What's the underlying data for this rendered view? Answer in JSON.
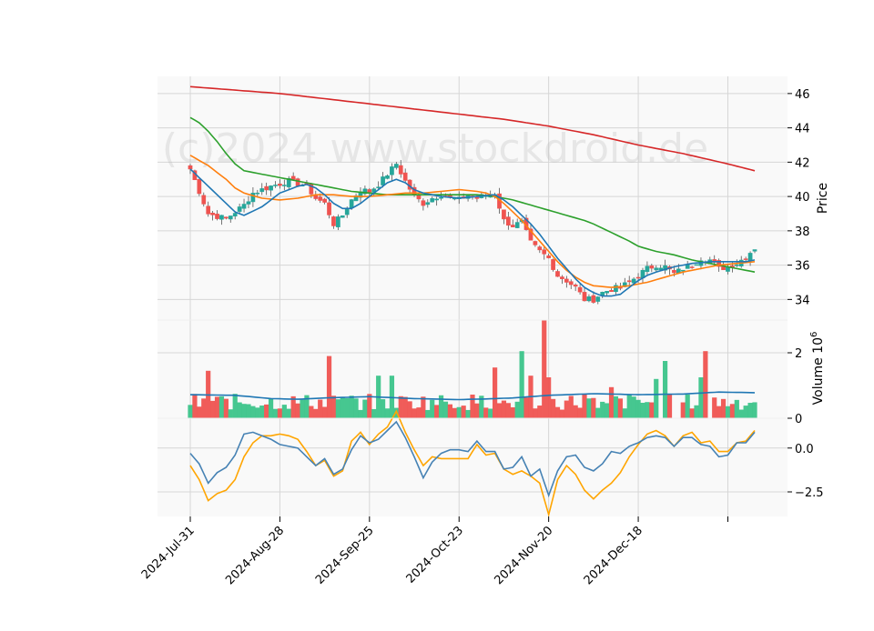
{
  "watermark": "(c)2024 www.stockdroid.de",
  "chart_data": [
    {
      "id": "price",
      "type": "candlestick",
      "ylabel": "Price",
      "ylim": [
        32.8,
        47.0
      ],
      "yticks": [
        34,
        36,
        38,
        40,
        42,
        44,
        46
      ],
      "grid": true,
      "colors": {
        "up": "#26a69a",
        "up_fill": "#3cc48a",
        "down": "#ef5350",
        "ma_short": "#1f77b4",
        "ma_mid": "#ff7f0e",
        "ma_long": "#2ca02c",
        "ma_very_long": "#d62728"
      },
      "close_anchors": [
        [
          0,
          41.6
        ],
        [
          2,
          40.3
        ],
        [
          4,
          39.0
        ],
        [
          8,
          38.7
        ],
        [
          12,
          39.5
        ],
        [
          14,
          40.2
        ],
        [
          18,
          40.6
        ],
        [
          22,
          40.9
        ],
        [
          26,
          40.6
        ],
        [
          28,
          39.9
        ],
        [
          30,
          39.6
        ],
        [
          32,
          38.4
        ],
        [
          34,
          38.9
        ],
        [
          36,
          39.8
        ],
        [
          38,
          40.4
        ],
        [
          40,
          40.3
        ],
        [
          42,
          40.7
        ],
        [
          44,
          41.3
        ],
        [
          46,
          41.9
        ],
        [
          48,
          40.9
        ],
        [
          50,
          40.0
        ],
        [
          52,
          39.6
        ],
        [
          54,
          39.9
        ],
        [
          56,
          40.1
        ],
        [
          58,
          39.9
        ],
        [
          60,
          39.8
        ],
        [
          62,
          40.1
        ],
        [
          64,
          39.9
        ],
        [
          66,
          40.1
        ],
        [
          68,
          40.2
        ],
        [
          70,
          38.6
        ],
        [
          72,
          38.3
        ],
        [
          74,
          38.5
        ],
        [
          76,
          37.3
        ],
        [
          78,
          36.8
        ],
        [
          80,
          36.4
        ],
        [
          82,
          35.4
        ],
        [
          84,
          35.1
        ],
        [
          86,
          34.7
        ],
        [
          88,
          34.0
        ],
        [
          90,
          34.0
        ],
        [
          92,
          34.4
        ],
        [
          94,
          34.6
        ],
        [
          96,
          34.7
        ],
        [
          98,
          35.0
        ],
        [
          100,
          35.4
        ],
        [
          102,
          35.8
        ],
        [
          104,
          36.0
        ],
        [
          106,
          35.9
        ],
        [
          108,
          35.5
        ],
        [
          110,
          35.8
        ],
        [
          112,
          36.0
        ],
        [
          114,
          36.4
        ],
        [
          116,
          36.3
        ],
        [
          118,
          35.8
        ],
        [
          120,
          35.9
        ],
        [
          122,
          36.1
        ],
        [
          124,
          36.5
        ],
        [
          126,
          37.0
        ]
      ],
      "ma_short_anchors": [
        [
          0,
          41.6
        ],
        [
          4,
          40.6
        ],
        [
          8,
          39.6
        ],
        [
          10,
          39.1
        ],
        [
          12,
          38.9
        ],
        [
          16,
          39.4
        ],
        [
          20,
          40.2
        ],
        [
          24,
          40.6
        ],
        [
          26,
          40.7
        ],
        [
          28,
          40.5
        ],
        [
          30,
          40.1
        ],
        [
          32,
          39.6
        ],
        [
          34,
          39.3
        ],
        [
          36,
          39.3
        ],
        [
          38,
          39.6
        ],
        [
          40,
          40.0
        ],
        [
          42,
          40.4
        ],
        [
          44,
          40.8
        ],
        [
          46,
          41.0
        ],
        [
          48,
          40.8
        ],
        [
          50,
          40.4
        ],
        [
          52,
          40.2
        ],
        [
          56,
          40.0
        ],
        [
          60,
          39.9
        ],
        [
          64,
          40.0
        ],
        [
          68,
          40.1
        ],
        [
          70,
          39.8
        ],
        [
          72,
          39.4
        ],
        [
          74,
          38.9
        ],
        [
          76,
          38.4
        ],
        [
          78,
          37.8
        ],
        [
          80,
          37.1
        ],
        [
          82,
          36.4
        ],
        [
          84,
          35.8
        ],
        [
          86,
          35.2
        ],
        [
          88,
          34.7
        ],
        [
          90,
          34.4
        ],
        [
          92,
          34.2
        ],
        [
          94,
          34.2
        ],
        [
          96,
          34.3
        ],
        [
          98,
          34.7
        ],
        [
          100,
          35.1
        ],
        [
          102,
          35.4
        ],
        [
          104,
          35.6
        ],
        [
          108,
          35.9
        ],
        [
          112,
          36.1
        ],
        [
          116,
          36.2
        ],
        [
          120,
          36.2
        ],
        [
          124,
          36.2
        ],
        [
          126,
          36.3
        ]
      ],
      "ma_mid_anchors": [
        [
          0,
          42.4
        ],
        [
          4,
          41.8
        ],
        [
          8,
          41.0
        ],
        [
          10,
          40.5
        ],
        [
          12,
          40.2
        ],
        [
          16,
          39.9
        ],
        [
          20,
          39.8
        ],
        [
          24,
          39.9
        ],
        [
          28,
          40.1
        ],
        [
          32,
          40.1
        ],
        [
          36,
          40.0
        ],
        [
          40,
          40.0
        ],
        [
          44,
          40.1
        ],
        [
          48,
          40.2
        ],
        [
          52,
          40.2
        ],
        [
          56,
          40.3
        ],
        [
          60,
          40.4
        ],
        [
          64,
          40.3
        ],
        [
          66,
          40.2
        ],
        [
          68,
          40.0
        ],
        [
          70,
          39.6
        ],
        [
          72,
          39.1
        ],
        [
          74,
          38.6
        ],
        [
          76,
          38.0
        ],
        [
          78,
          37.4
        ],
        [
          80,
          36.8
        ],
        [
          82,
          36.2
        ],
        [
          84,
          35.7
        ],
        [
          86,
          35.3
        ],
        [
          88,
          35.0
        ],
        [
          90,
          34.8
        ],
        [
          94,
          34.7
        ],
        [
          98,
          34.8
        ],
        [
          102,
          35.0
        ],
        [
          106,
          35.3
        ],
        [
          110,
          35.6
        ],
        [
          114,
          35.8
        ],
        [
          118,
          36.0
        ],
        [
          122,
          36.1
        ],
        [
          126,
          36.2
        ]
      ],
      "ma_long_anchors": [
        [
          0,
          44.6
        ],
        [
          2,
          44.3
        ],
        [
          4,
          43.8
        ],
        [
          6,
          43.2
        ],
        [
          8,
          42.5
        ],
        [
          10,
          41.9
        ],
        [
          12,
          41.5
        ],
        [
          16,
          41.3
        ],
        [
          20,
          41.1
        ],
        [
          24,
          40.9
        ],
        [
          28,
          40.7
        ],
        [
          32,
          40.5
        ],
        [
          36,
          40.3
        ],
        [
          40,
          40.2
        ],
        [
          44,
          40.1
        ],
        [
          48,
          40.1
        ],
        [
          52,
          40.1
        ],
        [
          56,
          40.1
        ],
        [
          60,
          40.1
        ],
        [
          64,
          40.1
        ],
        [
          68,
          40.0
        ],
        [
          72,
          39.8
        ],
        [
          76,
          39.5
        ],
        [
          80,
          39.2
        ],
        [
          84,
          38.9
        ],
        [
          88,
          38.6
        ],
        [
          90,
          38.4
        ],
        [
          94,
          37.9
        ],
        [
          98,
          37.4
        ],
        [
          100,
          37.1
        ],
        [
          104,
          36.8
        ],
        [
          108,
          36.6
        ],
        [
          112,
          36.3
        ],
        [
          116,
          36.1
        ],
        [
          120,
          35.9
        ],
        [
          124,
          35.7
        ],
        [
          126,
          35.6
        ]
      ],
      "ma_very_long_anchors": [
        [
          0,
          46.4
        ],
        [
          10,
          46.2
        ],
        [
          20,
          46.0
        ],
        [
          30,
          45.7
        ],
        [
          40,
          45.4
        ],
        [
          50,
          45.1
        ],
        [
          60,
          44.8
        ],
        [
          70,
          44.5
        ],
        [
          80,
          44.1
        ],
        [
          90,
          43.6
        ],
        [
          100,
          43.0
        ],
        [
          110,
          42.5
        ],
        [
          120,
          41.9
        ],
        [
          126,
          41.5
        ]
      ]
    },
    {
      "id": "volume",
      "type": "bar",
      "ylabel": "Volume  10",
      "ylabel_exponent": "6",
      "ylim": [
        0,
        3.0
      ],
      "yticks": [
        0,
        2
      ],
      "grid": true,
      "spike_values": [
        [
          4,
          1.45
        ],
        [
          31,
          1.9
        ],
        [
          42,
          1.3
        ],
        [
          45,
          1.3
        ],
        [
          68,
          1.55
        ],
        [
          74,
          2.05
        ],
        [
          76,
          1.3
        ],
        [
          79,
          3.0
        ],
        [
          80,
          1.25
        ],
        [
          88,
          0.75
        ],
        [
          94,
          0.95
        ],
        [
          104,
          1.2
        ],
        [
          106,
          1.75
        ],
        [
          114,
          1.25
        ],
        [
          115,
          2.05
        ]
      ],
      "avg_anchors": [
        [
          0,
          0.72
        ],
        [
          10,
          0.7
        ],
        [
          18,
          0.6
        ],
        [
          24,
          0.58
        ],
        [
          30,
          0.62
        ],
        [
          40,
          0.66
        ],
        [
          50,
          0.6
        ],
        [
          60,
          0.57
        ],
        [
          66,
          0.59
        ],
        [
          72,
          0.62
        ],
        [
          80,
          0.7
        ],
        [
          90,
          0.75
        ],
        [
          100,
          0.72
        ],
        [
          110,
          0.74
        ],
        [
          118,
          0.8
        ],
        [
          126,
          0.78
        ]
      ]
    },
    {
      "id": "oscillator",
      "type": "line",
      "ylim": [
        -3.9,
        1.7
      ],
      "yticks": [
        0.0,
        -2.5
      ],
      "ytick_labels": [
        "0.0",
        "−2.5"
      ],
      "grid": true,
      "colors": {
        "line_a": "#4682b4",
        "line_b": "#ffa500"
      },
      "line_a_anchors": [
        [
          0,
          -0.3
        ],
        [
          2,
          -0.9
        ],
        [
          4,
          -2.0
        ],
        [
          6,
          -1.4
        ],
        [
          8,
          -1.1
        ],
        [
          10,
          -0.4
        ],
        [
          12,
          0.8
        ],
        [
          14,
          0.9
        ],
        [
          16,
          0.7
        ],
        [
          18,
          0.5
        ],
        [
          20,
          0.2
        ],
        [
          22,
          0.1
        ],
        [
          24,
          0.0
        ],
        [
          26,
          -0.5
        ],
        [
          28,
          -1.0
        ],
        [
          30,
          -0.6
        ],
        [
          32,
          -1.5
        ],
        [
          34,
          -1.2
        ],
        [
          36,
          -0.1
        ],
        [
          38,
          0.7
        ],
        [
          40,
          0.3
        ],
        [
          42,
          0.5
        ],
        [
          44,
          1.0
        ],
        [
          46,
          1.5
        ],
        [
          48,
          0.6
        ],
        [
          50,
          -0.5
        ],
        [
          52,
          -1.7
        ],
        [
          54,
          -0.8
        ],
        [
          56,
          -0.3
        ],
        [
          58,
          -0.1
        ],
        [
          60,
          -0.1
        ],
        [
          62,
          -0.2
        ],
        [
          64,
          0.4
        ],
        [
          66,
          -0.2
        ],
        [
          68,
          -0.2
        ],
        [
          70,
          -1.2
        ],
        [
          72,
          -1.1
        ],
        [
          74,
          -0.5
        ],
        [
          76,
          -1.6
        ],
        [
          78,
          -1.2
        ],
        [
          80,
          -2.7
        ],
        [
          82,
          -1.3
        ],
        [
          84,
          -0.5
        ],
        [
          86,
          -0.4
        ],
        [
          88,
          -1.1
        ],
        [
          90,
          -1.3
        ],
        [
          92,
          -0.9
        ],
        [
          94,
          -0.2
        ],
        [
          96,
          -0.3
        ],
        [
          98,
          0.1
        ],
        [
          100,
          0.3
        ],
        [
          102,
          0.6
        ],
        [
          104,
          0.7
        ],
        [
          106,
          0.6
        ],
        [
          108,
          0.1
        ],
        [
          110,
          0.6
        ],
        [
          112,
          0.6
        ],
        [
          114,
          0.2
        ],
        [
          116,
          0.1
        ],
        [
          118,
          -0.5
        ],
        [
          120,
          -0.4
        ],
        [
          122,
          0.3
        ],
        [
          124,
          0.3
        ],
        [
          126,
          0.9
        ]
      ],
      "line_b_anchors": [
        [
          0,
          -1.0
        ],
        [
          2,
          -1.8
        ],
        [
          4,
          -3.0
        ],
        [
          6,
          -2.6
        ],
        [
          8,
          -2.4
        ],
        [
          10,
          -1.8
        ],
        [
          12,
          -0.5
        ],
        [
          14,
          0.3
        ],
        [
          16,
          0.7
        ],
        [
          18,
          0.7
        ],
        [
          20,
          0.8
        ],
        [
          22,
          0.7
        ],
        [
          24,
          0.5
        ],
        [
          26,
          -0.2
        ],
        [
          28,
          -1.0
        ],
        [
          30,
          -0.7
        ],
        [
          32,
          -1.6
        ],
        [
          34,
          -1.3
        ],
        [
          36,
          0.4
        ],
        [
          38,
          0.9
        ],
        [
          40,
          0.2
        ],
        [
          42,
          0.8
        ],
        [
          44,
          1.2
        ],
        [
          46,
          2.1
        ],
        [
          48,
          0.9
        ],
        [
          50,
          -0.1
        ],
        [
          52,
          -1.0
        ],
        [
          54,
          -0.5
        ],
        [
          56,
          -0.6
        ],
        [
          58,
          -0.6
        ],
        [
          60,
          -0.6
        ],
        [
          62,
          -0.6
        ],
        [
          64,
          0.2
        ],
        [
          66,
          -0.4
        ],
        [
          68,
          -0.3
        ],
        [
          70,
          -1.2
        ],
        [
          72,
          -1.5
        ],
        [
          74,
          -1.3
        ],
        [
          76,
          -1.6
        ],
        [
          78,
          -2.0
        ],
        [
          80,
          -3.8
        ],
        [
          82,
          -1.8
        ],
        [
          84,
          -1.0
        ],
        [
          86,
          -1.5
        ],
        [
          88,
          -2.4
        ],
        [
          90,
          -2.9
        ],
        [
          92,
          -2.4
        ],
        [
          94,
          -2.0
        ],
        [
          96,
          -1.4
        ],
        [
          98,
          -0.5
        ],
        [
          100,
          0.2
        ],
        [
          102,
          0.8
        ],
        [
          104,
          1.0
        ],
        [
          106,
          0.7
        ],
        [
          108,
          0.1
        ],
        [
          110,
          0.7
        ],
        [
          112,
          0.9
        ],
        [
          114,
          0.3
        ],
        [
          116,
          0.4
        ],
        [
          118,
          -0.2
        ],
        [
          120,
          -0.2
        ],
        [
          122,
          0.3
        ],
        [
          124,
          0.4
        ],
        [
          126,
          1.0
        ]
      ]
    }
  ],
  "x_axis": {
    "categories_count": 127,
    "tick_indices": [
      0,
      20,
      40,
      60,
      80,
      100,
      120
    ],
    "tick_labels": [
      "2024-Jul-31",
      "2024-Aug-28",
      "2024-Sep-25",
      "2024-Oct-23",
      "2024-Nov-20",
      "2024-Dec-18",
      ""
    ]
  }
}
